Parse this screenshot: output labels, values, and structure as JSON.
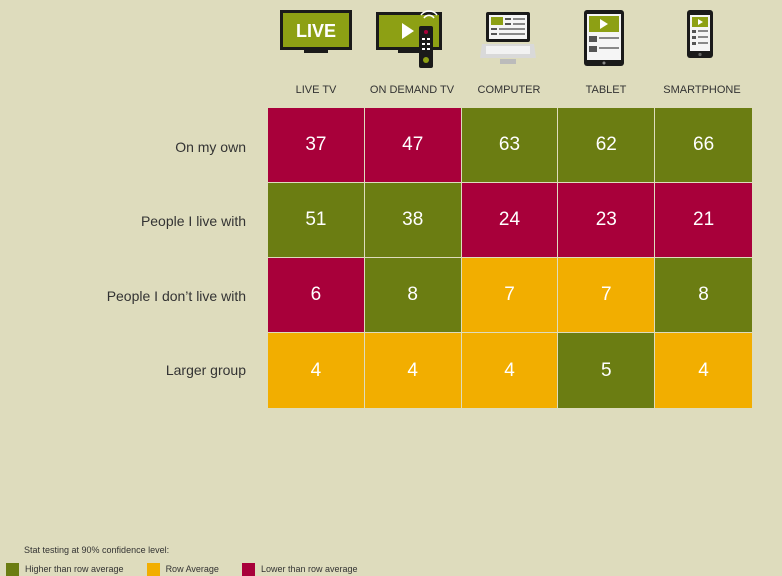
{
  "colors": {
    "higher": "#6b7d12",
    "average": "#f2ae00",
    "lower": "#a8003a",
    "background": "#dedcbd"
  },
  "icons": [
    {
      "name": "live-tv-icon",
      "text": "LIVE"
    },
    {
      "name": "on-demand-tv-icon"
    },
    {
      "name": "computer-icon"
    },
    {
      "name": "tablet-icon"
    },
    {
      "name": "smartphone-icon"
    }
  ],
  "chart_data": {
    "type": "heatmap",
    "columns": [
      "LIVE TV",
      "ON DEMAND TV",
      "COMPUTER",
      "TABLET",
      "SMARTPHONE"
    ],
    "rows": [
      "On my own",
      "People I live with",
      "People I don’t live with",
      "Larger group"
    ],
    "values": [
      [
        37,
        47,
        63,
        62,
        66
      ],
      [
        51,
        38,
        24,
        23,
        21
      ],
      [
        6,
        8,
        7,
        7,
        8
      ],
      [
        4,
        4,
        4,
        5,
        4
      ]
    ],
    "status": [
      [
        "lower",
        "lower",
        "higher",
        "higher",
        "higher"
      ],
      [
        "higher",
        "higher",
        "lower",
        "lower",
        "lower"
      ],
      [
        "lower",
        "higher",
        "average",
        "average",
        "higher"
      ],
      [
        "average",
        "average",
        "average",
        "higher",
        "average"
      ]
    ]
  },
  "legend": {
    "title": "Stat testing at 90% confidence level:",
    "items": [
      {
        "key": "higher",
        "label": "Higher than row average"
      },
      {
        "key": "average",
        "label": "Row Average"
      },
      {
        "key": "lower",
        "label": "Lower than row average"
      }
    ]
  }
}
